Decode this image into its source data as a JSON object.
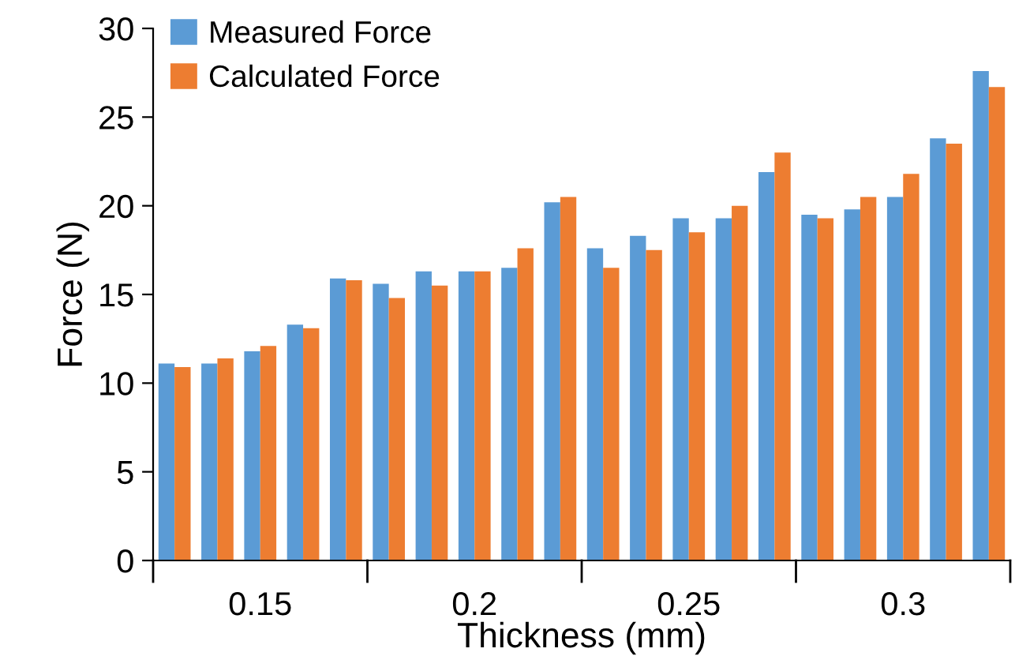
{
  "chart_data": {
    "type": "bar",
    "xlabel": "Thickness (mm)",
    "ylabel": "Force (N)",
    "categories": [
      null,
      null,
      "0.15",
      null,
      null,
      null,
      null,
      "0.2",
      null,
      null,
      null,
      null,
      "0.25",
      null,
      null,
      null,
      null,
      "0.3",
      null,
      null
    ],
    "series": [
      {
        "name": "Measured Force",
        "color": "#5b9bd5",
        "values": [
          11.1,
          11.1,
          11.8,
          13.3,
          15.9,
          15.6,
          16.3,
          16.3,
          16.5,
          20.2,
          17.6,
          18.3,
          19.3,
          19.3,
          21.9,
          19.5,
          19.8,
          20.5,
          23.8,
          27.6
        ]
      },
      {
        "name": "Calculated Force",
        "color": "#ed7d31",
        "values": [
          10.9,
          11.4,
          12.1,
          13.1,
          15.8,
          14.8,
          15.5,
          16.3,
          17.6,
          20.5,
          16.5,
          17.5,
          18.5,
          20.0,
          23.0,
          19.3,
          20.5,
          21.8,
          23.5,
          26.7
        ]
      }
    ],
    "ylim": [
      0,
      30
    ],
    "yticks": [
      0,
      5,
      10,
      15,
      20,
      25,
      30
    ],
    "grid": false,
    "legend": "top left"
  }
}
